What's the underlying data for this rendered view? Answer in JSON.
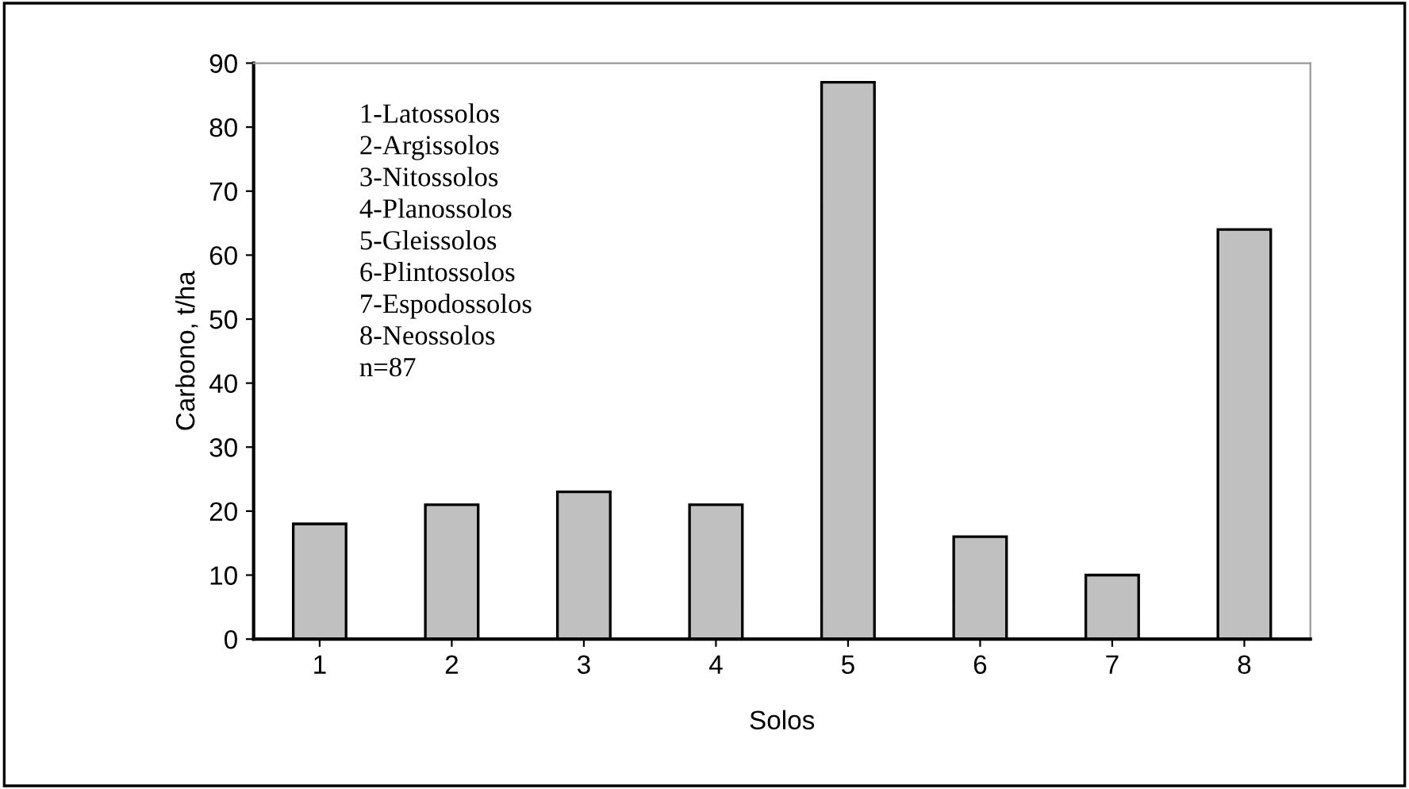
{
  "chart_data": {
    "type": "bar",
    "xlabel": "Solos",
    "ylabel": "Carbono, t/ha",
    "categories": [
      "1",
      "2",
      "3",
      "4",
      "5",
      "6",
      "7",
      "8"
    ],
    "values": [
      18,
      21,
      23,
      21,
      87,
      16,
      10,
      64
    ],
    "color": "#c0c0c0",
    "ylim": [
      0,
      90
    ],
    "yticks": [
      0,
      10,
      20,
      30,
      40,
      50,
      60,
      70,
      80,
      90
    ],
    "grid": false,
    "annotations": [
      "1-Latossolos",
      "2-Argissolos",
      "3-Nitossolos",
      "4-Planossolos",
      "5-Gleissolos",
      "6-Plintossolos",
      "7-Espodossolos",
      "8-Neossolos",
      "n=87"
    ]
  }
}
